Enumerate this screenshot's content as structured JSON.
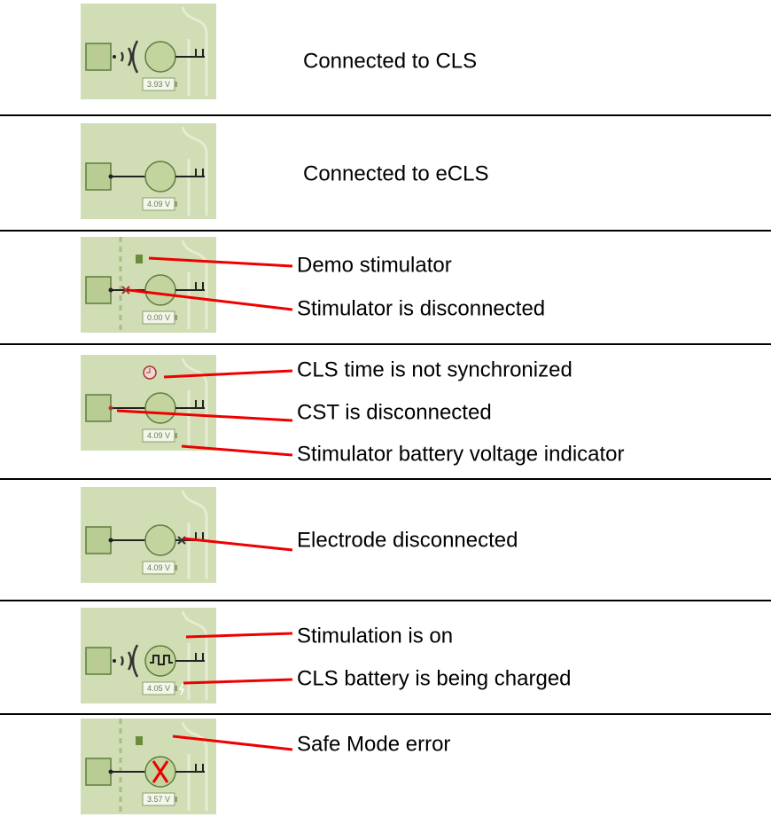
{
  "rows": [
    {
      "battery": "3.93 V",
      "labels": [
        "Connected to CLS"
      ]
    },
    {
      "battery": "4.09 V",
      "labels": [
        "Connected to eCLS"
      ]
    },
    {
      "battery": "0.00 V",
      "labels": [
        "Demo stimulator",
        "Stimulator is disconnected"
      ]
    },
    {
      "battery": "4.09 V",
      "labels": [
        "CLS time is not synchronized",
        "CST is disconnected",
        "Stimulator battery voltage indicator"
      ]
    },
    {
      "battery": "4.09 V",
      "labels": [
        "Electrode disconnected"
      ]
    },
    {
      "battery": "4.05 V",
      "labels": [
        "Stimulation is on",
        "CLS battery is being charged"
      ]
    },
    {
      "battery": "3.57 V",
      "labels": [
        "Safe Mode error"
      ]
    }
  ]
}
